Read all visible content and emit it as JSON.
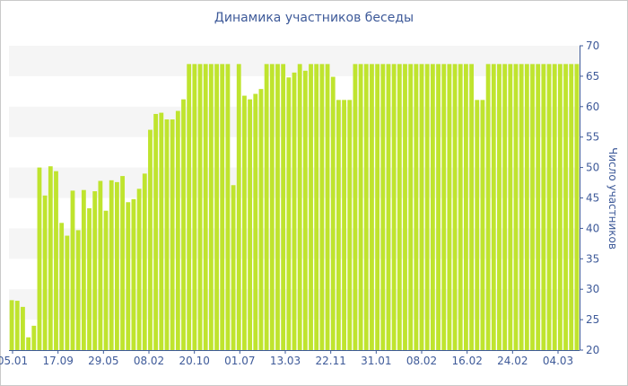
{
  "chart_data": {
    "type": "bar",
    "title": "Динамика участников беседы",
    "ylabel": "Число участников",
    "xlabel": "",
    "ylim": [
      20,
      70
    ],
    "y_ticks": [
      20,
      25,
      30,
      35,
      40,
      45,
      50,
      55,
      60,
      65,
      70
    ],
    "x_tick_labels": [
      "05.01",
      "17.09",
      "29.05",
      "08.02",
      "20.10",
      "01.07",
      "13.03",
      "22.11",
      "31.01",
      "08.02",
      "16.02",
      "24.02",
      "04.03"
    ],
    "grid": "alternating horizontal bands",
    "values": [
      28.2,
      28.1,
      27.1,
      22.1,
      24.0,
      50.0,
      45.4,
      50.2,
      49.4,
      40.9,
      38.8,
      46.2,
      39.7,
      46.3,
      43.3,
      46.1,
      47.8,
      42.9,
      47.9,
      47.6,
      48.6,
      44.3,
      44.8,
      46.5,
      49.0,
      56.2,
      58.8,
      59.0,
      57.9,
      57.9,
      59.3,
      61.2,
      67.0,
      67.0,
      67.0,
      67.0,
      67.0,
      67.0,
      67.0,
      67.0,
      47.1,
      67.0,
      61.8,
      61.2,
      62.1,
      62.9,
      67.0,
      67.0,
      67.0,
      67.0,
      64.8,
      65.6,
      67.0,
      65.9,
      67.0,
      67.0,
      67.0,
      67.0,
      64.9,
      61.1,
      61.1,
      61.1,
      67.0,
      67.0,
      67.0,
      67.0,
      67.0,
      67.0,
      67.0,
      67.0,
      67.0,
      67.0,
      67.0,
      67.0,
      67.0,
      67.0,
      67.0,
      67.0,
      67.0,
      67.0,
      67.0,
      67.0,
      67.0,
      67.0,
      61.1,
      61.1,
      67.0,
      67.0,
      67.0,
      67.0,
      67.0,
      67.0,
      67.0,
      67.0,
      67.0,
      67.0,
      67.0,
      67.0,
      67.0,
      67.0,
      67.0,
      67.0,
      67.0
    ],
    "colors": {
      "bar": "#bfe42e",
      "axis_text": "#3e5a99",
      "band": "#f5f5f5",
      "axis_line": "#3e5a99"
    }
  }
}
